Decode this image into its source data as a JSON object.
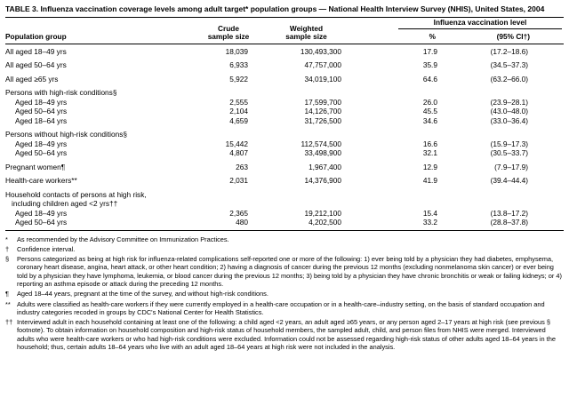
{
  "page": {
    "title": "TABLE 3. Influenza vaccination coverage levels among adult target* population groups — National Health Interview Survey (NHIS), United States, 2004"
  },
  "table": {
    "headers": {
      "population": "Population group",
      "crude1": "Crude",
      "crude2": "sample size",
      "weighted1": "Weighted",
      "weighted2": "sample size",
      "span": "Influenza vaccination level",
      "pct": "%",
      "ci": "(95% CI†)"
    },
    "rows": [
      {
        "type": "data",
        "gap": false,
        "indent": 0,
        "label": "All aged 18–49 yrs",
        "crude": "18,039",
        "weighted": "130,493,300",
        "pct": "17.9",
        "ci": "(17.2–18.6)"
      },
      {
        "type": "data",
        "gap": true,
        "indent": 0,
        "label": "All aged 50–64 yrs",
        "crude": "6,933",
        "weighted": "47,757,000",
        "pct": "35.9",
        "ci": "(34.5–37.3)"
      },
      {
        "type": "data",
        "gap": true,
        "indent": 0,
        "label": "All aged ≥65 yrs",
        "crude": "5,922",
        "weighted": "34,019,100",
        "pct": "64.6",
        "ci": "(63.2–66.0)"
      },
      {
        "type": "section",
        "gap": true,
        "indent": 0,
        "label": "Persons with high-risk conditions§"
      },
      {
        "type": "data",
        "gap": false,
        "indent": 1,
        "label": "Aged 18–49 yrs",
        "crude": "2,555",
        "weighted": "17,599,700",
        "pct": "26.0",
        "ci": "(23.9–28.1)"
      },
      {
        "type": "data",
        "gap": false,
        "indent": 1,
        "label": "Aged 50–64 yrs",
        "crude": "2,104",
        "weighted": "14,126,700",
        "pct": "45.5",
        "ci": "(43.0–48.0)"
      },
      {
        "type": "data",
        "gap": false,
        "indent": 1,
        "label": "Aged 18–64 yrs",
        "crude": "4,659",
        "weighted": "31,726,500",
        "pct": "34.6",
        "ci": "(33.0–36.4)"
      },
      {
        "type": "section",
        "gap": true,
        "indent": 0,
        "label": "Persons without high-risk conditions§"
      },
      {
        "type": "data",
        "gap": false,
        "indent": 1,
        "label": "Aged 18–49 yrs",
        "crude": "15,442",
        "weighted": "112,574,500",
        "pct": "16.6",
        "ci": "(15.9–17.3)"
      },
      {
        "type": "data",
        "gap": false,
        "indent": 1,
        "label": "Aged 50–64 yrs",
        "crude": "4,807",
        "weighted": "33,498,900",
        "pct": "32.1",
        "ci": "(30.5–33.7)"
      },
      {
        "type": "data",
        "gap": true,
        "indent": 0,
        "label": "Pregnant women¶",
        "crude": "263",
        "weighted": "1,967,400",
        "pct": "12.9",
        "ci": "(7.9–17.9)"
      },
      {
        "type": "data",
        "gap": true,
        "indent": 0,
        "label": "Health-care workers**",
        "crude": "2,031",
        "weighted": "14,376,900",
        "pct": "41.9",
        "ci": "(39.4–44.4)"
      },
      {
        "type": "section",
        "gap": true,
        "indent": 0,
        "label": "Household contacts of persons at high risk,",
        "label2": "including children aged <2 yrs††"
      },
      {
        "type": "data",
        "gap": false,
        "indent": 1,
        "label": "Aged 18–49 yrs",
        "crude": "2,365",
        "weighted": "19,212,100",
        "pct": "15.4",
        "ci": "(13.8–17.2)"
      },
      {
        "type": "data",
        "gap": false,
        "indent": 1,
        "label": "Aged 50–64 yrs",
        "crude": "480",
        "weighted": "4,202,500",
        "pct": "33.2",
        "ci": "(28.8–37.8)"
      }
    ]
  },
  "footnotes": [
    {
      "marker": "*",
      "text": "As recommended by the Advisory Committee on Immunization Practices."
    },
    {
      "marker": "†",
      "text": "Confidence interval."
    },
    {
      "marker": "§",
      "text": "Persons categorized as being at high risk for influenza-related complications self-reported one or more of the following: 1) ever being told by a physician they had diabetes, emphysema, coronary heart disease, angina, heart attack, or other heart condition; 2) having a diagnosis of cancer during the previous 12 months (excluding nonmelanoma skin cancer) or ever being told by a physician they have lymphoma, leukemia, or blood cancer during the previous 12 months; 3) being told by a physician they have chronic bronchitis or weak or failing kidneys; or 4) reporting an asthma episode or attack during the preceding 12 months."
    },
    {
      "marker": "¶",
      "text": "Aged 18–44 years, pregnant at the time of the survey, and without high-risk conditions."
    },
    {
      "marker": "**",
      "text": "Adults were classified as health-care workers if they were currently employed in a health-care occupation or in a health-care–industry setting, on the basis of standard occupation and industry categories recoded in groups by CDC's National Center for Health Statistics."
    },
    {
      "marker": "††",
      "text": "Interviewed adult in each household containing at least one of the following: a child aged <2 years, an adult aged ≥65 years, or any person aged 2–17 years at high risk (see previous § footnote). To obtain information on household composition and high-risk status of household members, the sampled adult, child, and person files from NHIS were merged. Interviewed adults who were health-care workers or who had high-risk conditions were excluded. Information could not be assessed regarding high-risk status of other adults aged 18–64 years in the household; thus, certain adults 18–64 years who live with an adult aged 18–64 years at high risk were not included in the analysis."
    }
  ]
}
